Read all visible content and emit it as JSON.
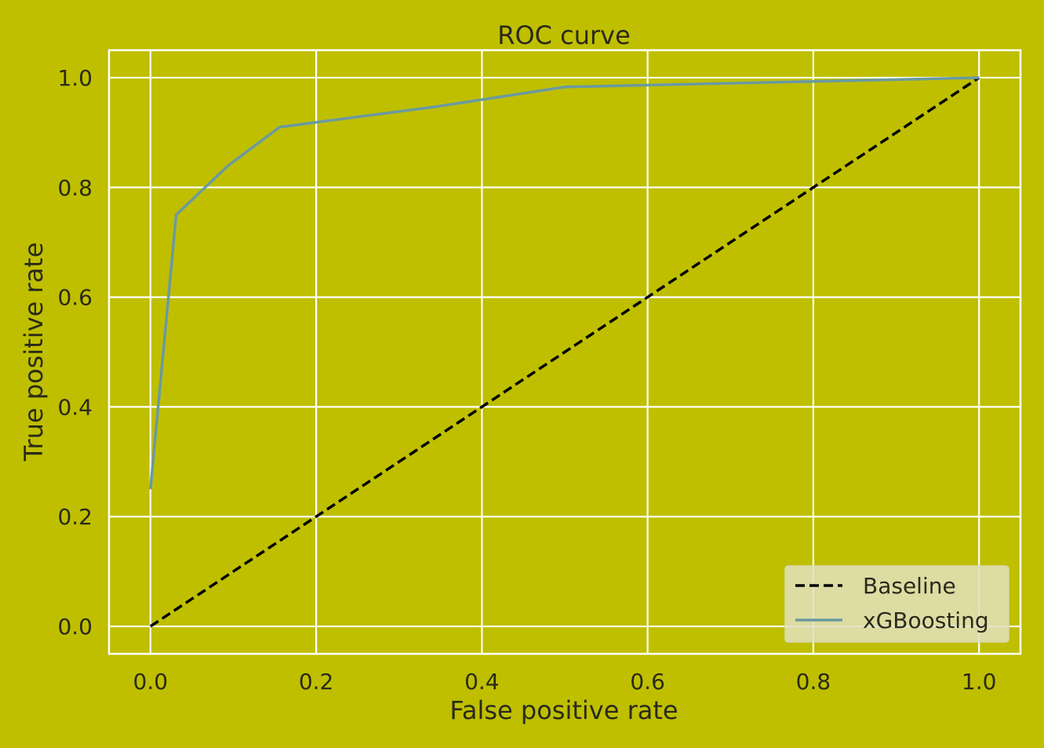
{
  "colors": {
    "background": "#bfbf00",
    "plot_background": "#bfbf00",
    "grid": "#ffffff",
    "text": "#2a2a1a",
    "baseline": "#000000",
    "series": "#6a9aa0",
    "legend_background": "#e0e0c0"
  },
  "chart_data": {
    "type": "line",
    "title": "ROC curve",
    "xlabel": "False positive rate",
    "ylabel": "True positive rate",
    "xlim": [
      -0.05,
      1.05
    ],
    "ylim": [
      -0.05,
      1.05
    ],
    "xticks": [
      0.0,
      0.2,
      0.4,
      0.6,
      0.8,
      1.0
    ],
    "yticks": [
      0.0,
      0.2,
      0.4,
      0.6,
      0.8,
      1.0
    ],
    "xtick_labels": [
      "0.0",
      "0.2",
      "0.4",
      "0.6",
      "0.8",
      "1.0"
    ],
    "ytick_labels": [
      "0.0",
      "0.2",
      "0.4",
      "0.6",
      "0.8",
      "1.0"
    ],
    "grid": true,
    "legend_position": "bottom-right",
    "series": [
      {
        "name": "Baseline",
        "style": "dashed",
        "color": "#000000",
        "x": [
          0.0,
          1.0
        ],
        "y": [
          0.0,
          1.0
        ]
      },
      {
        "name": "xGBoosting",
        "style": "solid",
        "color": "#6a9aa0",
        "x": [
          0.0,
          0.031,
          0.094,
          0.156,
          0.344,
          0.5,
          1.0
        ],
        "y": [
          0.25,
          0.75,
          0.84,
          0.91,
          0.947,
          0.983,
          1.0
        ]
      }
    ]
  }
}
